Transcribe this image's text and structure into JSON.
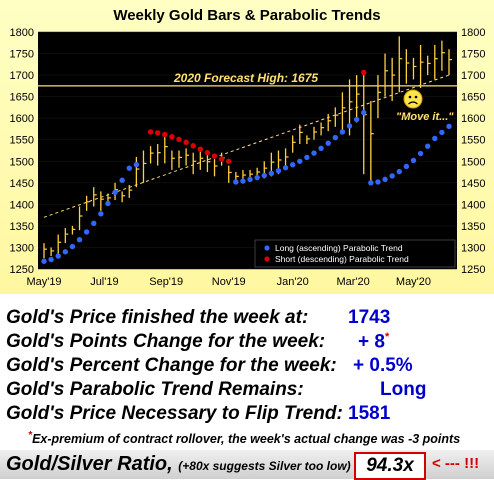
{
  "chart_data": {
    "type": "line",
    "title": "Weekly Gold Bars & Parabolic Trends",
    "x_ticks": [
      "May'19",
      "Jul'19",
      "Sep'19",
      "Nov'19",
      "Jan'20",
      "Mar'20",
      "May'20"
    ],
    "ylim": [
      1250,
      1800
    ],
    "y_ticks": [
      1250,
      1300,
      1350,
      1400,
      1450,
      1500,
      1550,
      1600,
      1650,
      1700,
      1750,
      1800
    ],
    "forecast_line": {
      "value": 1675,
      "label": "2020 Forecast High:  1675"
    },
    "annotation": "\"Move it...\"",
    "legend_position": "bottom-right",
    "weekly_bars": [
      [
        1275,
        1310
      ],
      [
        1280,
        1300
      ],
      [
        1285,
        1330
      ],
      [
        1310,
        1345
      ],
      [
        1330,
        1350
      ],
      [
        1340,
        1395
      ],
      [
        1385,
        1420
      ],
      [
        1395,
        1440
      ],
      [
        1385,
        1430
      ],
      [
        1400,
        1425
      ],
      [
        1410,
        1450
      ],
      [
        1405,
        1430
      ],
      [
        1415,
        1445
      ],
      [
        1440,
        1510
      ],
      [
        1450,
        1525
      ],
      [
        1495,
        1535
      ],
      [
        1490,
        1540
      ],
      [
        1495,
        1560
      ],
      [
        1480,
        1525
      ],
      [
        1485,
        1525
      ],
      [
        1490,
        1530
      ],
      [
        1470,
        1520
      ],
      [
        1480,
        1525
      ],
      [
        1475,
        1515
      ],
      [
        1465,
        1505
      ],
      [
        1490,
        1520
      ],
      [
        1450,
        1490
      ],
      [
        1450,
        1475
      ],
      [
        1450,
        1480
      ],
      [
        1455,
        1480
      ],
      [
        1460,
        1485
      ],
      [
        1460,
        1500
      ],
      [
        1465,
        1520
      ],
      [
        1470,
        1525
      ],
      [
        1480,
        1530
      ],
      [
        1520,
        1560
      ],
      [
        1540,
        1585
      ],
      [
        1540,
        1560
      ],
      [
        1550,
        1580
      ],
      [
        1560,
        1590
      ],
      [
        1570,
        1610
      ],
      [
        1580,
        1625
      ],
      [
        1570,
        1660
      ],
      [
        1560,
        1690
      ],
      [
        1590,
        1700
      ],
      [
        1470,
        1700
      ],
      [
        1450,
        1640
      ],
      [
        1600,
        1700
      ],
      [
        1650,
        1750
      ],
      [
        1640,
        1740
      ],
      [
        1660,
        1790
      ],
      [
        1680,
        1760
      ],
      [
        1690,
        1740
      ],
      [
        1670,
        1770
      ],
      [
        1700,
        1745
      ],
      [
        1690,
        1770
      ],
      [
        1710,
        1780
      ],
      [
        1700,
        1760
      ]
    ],
    "series": [
      {
        "name": "Long (ascending) Parabolic Trend",
        "color": "#3366ff",
        "points": [
          [
            0,
            1268
          ],
          [
            1,
            1272
          ],
          [
            2,
            1280
          ],
          [
            3,
            1290
          ],
          [
            4,
            1302
          ],
          [
            5,
            1318
          ],
          [
            6,
            1336
          ],
          [
            7,
            1356
          ],
          [
            8,
            1378
          ],
          [
            9,
            1402
          ],
          [
            10,
            1428
          ],
          [
            11,
            1456
          ],
          [
            12,
            1484
          ],
          [
            13,
            1492
          ],
          [
            27,
            1452
          ],
          [
            28,
            1454
          ],
          [
            29,
            1458
          ],
          [
            30,
            1462
          ],
          [
            31,
            1467
          ],
          [
            32,
            1472
          ],
          [
            33,
            1478
          ],
          [
            34,
            1485
          ],
          [
            35,
            1492
          ],
          [
            36,
            1500
          ],
          [
            37,
            1509
          ],
          [
            38,
            1519
          ],
          [
            39,
            1530
          ],
          [
            40,
            1542
          ],
          [
            41,
            1555
          ],
          [
            42,
            1568
          ],
          [
            43,
            1582
          ],
          [
            44,
            1597
          ],
          [
            45,
            1613
          ],
          [
            46,
            1450
          ],
          [
            47,
            1452
          ],
          [
            48,
            1458
          ],
          [
            49,
            1466
          ],
          [
            50,
            1476
          ],
          [
            51,
            1488
          ],
          [
            52,
            1502
          ],
          [
            53,
            1518
          ],
          [
            54,
            1535
          ],
          [
            55,
            1553
          ],
          [
            56,
            1567
          ],
          [
            57,
            1581
          ]
        ]
      },
      {
        "name": "Short (descending) Parabolic Trend",
        "color": "#dd0000",
        "points": [
          [
            15,
            1568
          ],
          [
            16,
            1566
          ],
          [
            17,
            1562
          ],
          [
            18,
            1557
          ],
          [
            19,
            1551
          ],
          [
            20,
            1544
          ],
          [
            21,
            1536
          ],
          [
            22,
            1528
          ],
          [
            23,
            1520
          ],
          [
            24,
            1512
          ],
          [
            25,
            1505
          ],
          [
            26,
            1500
          ],
          [
            45,
            1706
          ]
        ]
      }
    ],
    "trendline": {
      "style": "dashed",
      "color": "#ffe070",
      "from": [
        0,
        1370
      ],
      "to": [
        57,
        1700
      ]
    }
  },
  "stats": [
    {
      "label": "Gold's Price finished the week at:",
      "value": "1743",
      "sup": ""
    },
    {
      "label": "Gold's Points Change for the week:",
      "value": "+ 8",
      "sup": "*"
    },
    {
      "label": "Gold's Percent Change for the week:",
      "value": "+ 0.5%",
      "sup": ""
    },
    {
      "label": "Gold's Parabolic Trend Remains:",
      "value": "Long",
      "sup": ""
    },
    {
      "label": "Gold's Price Necessary to Flip Trend:",
      "value": "1581",
      "sup": ""
    }
  ],
  "footnote": {
    "mark": "*",
    "text": "Ex-premium of contract rollover, the week's actual change was -3 points"
  },
  "ratio": {
    "label": "Gold/Silver Ratio,",
    "sub": "(+80x suggests Silver too low)",
    "colon": ":",
    "value": "94.3x",
    "arrow": "< --- !!!"
  },
  "colors": {
    "plot_bg": "#000000",
    "bars": "#ffd040",
    "forecast": "#ffe070",
    "value_text": "#0000cc",
    "alert": "#d40000"
  }
}
